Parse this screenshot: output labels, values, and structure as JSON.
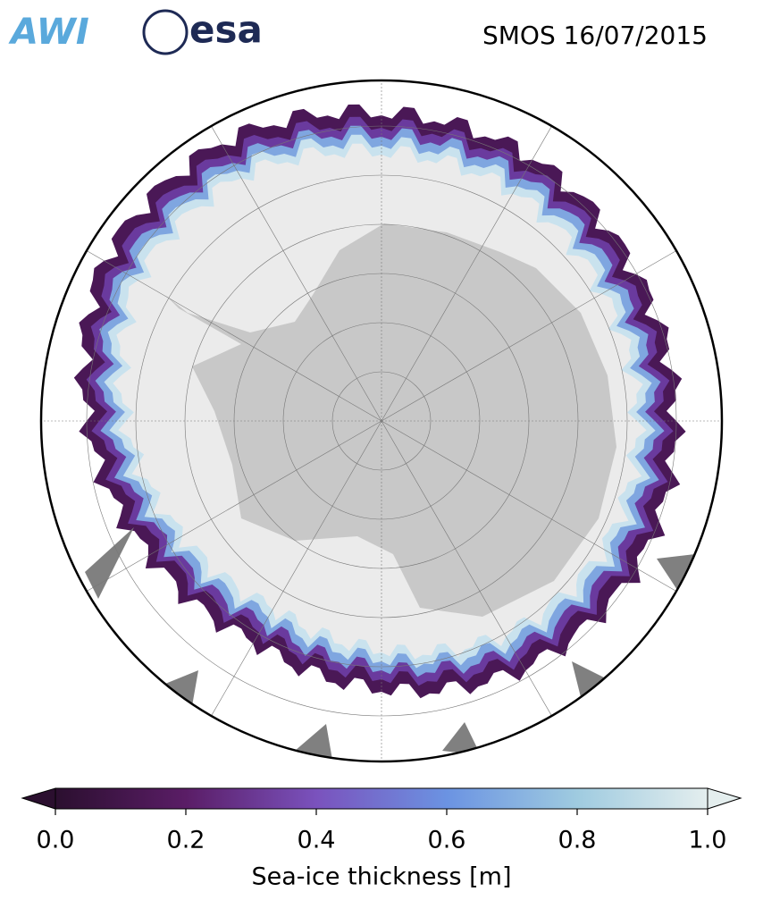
{
  "logos": [
    "AWI",
    "esa"
  ],
  "chart_data": {
    "type": "map",
    "title": "SMOS 16/07/2015",
    "colorbar": {
      "label": "Sea-ice thickness [m]",
      "clim": [
        0,
        1
      ],
      "ticks": [
        {
          "value": 0,
          "label": "0.0"
        },
        {
          "value": 0.2,
          "label": "0.2"
        },
        {
          "value": 0.4,
          "label": "0.4"
        },
        {
          "value": 0.6,
          "label": "0.6"
        },
        {
          "value": 0.8,
          "label": "0.8"
        },
        {
          "value": 1,
          "label": "1.0"
        }
      ]
    }
  }
}
